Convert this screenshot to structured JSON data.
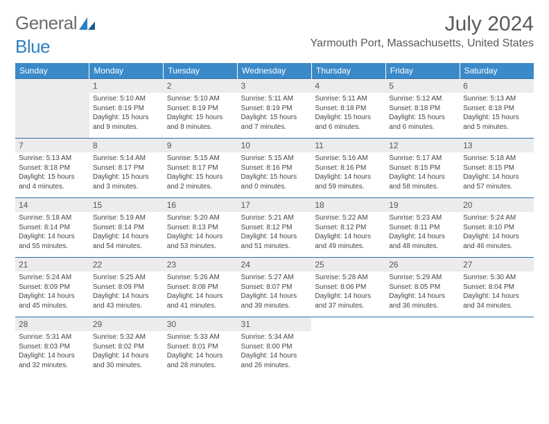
{
  "logo": {
    "text1": "General",
    "text2": "Blue"
  },
  "title": "July 2024",
  "location": "Yarmouth Port, Massachusetts, United States",
  "colors": {
    "header_bg": "#3a8ac9",
    "row_border": "#2e6da4",
    "shade": "#ececec",
    "text": "#444444",
    "title": "#595959"
  },
  "day_headers": [
    "Sunday",
    "Monday",
    "Tuesday",
    "Wednesday",
    "Thursday",
    "Friday",
    "Saturday"
  ],
  "weeks": [
    {
      "shaded_daynum": true,
      "cells": [
        {
          "empty": true,
          "shaded": true
        },
        {
          "day": "1",
          "sunrise": "Sunrise: 5:10 AM",
          "sunset": "Sunset: 8:19 PM",
          "daylight1": "Daylight: 15 hours",
          "daylight2": "and 9 minutes."
        },
        {
          "day": "2",
          "sunrise": "Sunrise: 5:10 AM",
          "sunset": "Sunset: 8:19 PM",
          "daylight1": "Daylight: 15 hours",
          "daylight2": "and 8 minutes."
        },
        {
          "day": "3",
          "sunrise": "Sunrise: 5:11 AM",
          "sunset": "Sunset: 8:19 PM",
          "daylight1": "Daylight: 15 hours",
          "daylight2": "and 7 minutes."
        },
        {
          "day": "4",
          "sunrise": "Sunrise: 5:11 AM",
          "sunset": "Sunset: 8:18 PM",
          "daylight1": "Daylight: 15 hours",
          "daylight2": "and 6 minutes."
        },
        {
          "day": "5",
          "sunrise": "Sunrise: 5:12 AM",
          "sunset": "Sunset: 8:18 PM",
          "daylight1": "Daylight: 15 hours",
          "daylight2": "and 6 minutes."
        },
        {
          "day": "6",
          "sunrise": "Sunrise: 5:13 AM",
          "sunset": "Sunset: 8:18 PM",
          "daylight1": "Daylight: 15 hours",
          "daylight2": "and 5 minutes."
        }
      ]
    },
    {
      "shaded_daynum": true,
      "cells": [
        {
          "day": "7",
          "sunrise": "Sunrise: 5:13 AM",
          "sunset": "Sunset: 8:18 PM",
          "daylight1": "Daylight: 15 hours",
          "daylight2": "and 4 minutes."
        },
        {
          "day": "8",
          "sunrise": "Sunrise: 5:14 AM",
          "sunset": "Sunset: 8:17 PM",
          "daylight1": "Daylight: 15 hours",
          "daylight2": "and 3 minutes."
        },
        {
          "day": "9",
          "sunrise": "Sunrise: 5:15 AM",
          "sunset": "Sunset: 8:17 PM",
          "daylight1": "Daylight: 15 hours",
          "daylight2": "and 2 minutes."
        },
        {
          "day": "10",
          "sunrise": "Sunrise: 5:15 AM",
          "sunset": "Sunset: 8:16 PM",
          "daylight1": "Daylight: 15 hours",
          "daylight2": "and 0 minutes."
        },
        {
          "day": "11",
          "sunrise": "Sunrise: 5:16 AM",
          "sunset": "Sunset: 8:16 PM",
          "daylight1": "Daylight: 14 hours",
          "daylight2": "and 59 minutes."
        },
        {
          "day": "12",
          "sunrise": "Sunrise: 5:17 AM",
          "sunset": "Sunset: 8:15 PM",
          "daylight1": "Daylight: 14 hours",
          "daylight2": "and 58 minutes."
        },
        {
          "day": "13",
          "sunrise": "Sunrise: 5:18 AM",
          "sunset": "Sunset: 8:15 PM",
          "daylight1": "Daylight: 14 hours",
          "daylight2": "and 57 minutes."
        }
      ]
    },
    {
      "shaded_daynum": true,
      "cells": [
        {
          "day": "14",
          "sunrise": "Sunrise: 5:18 AM",
          "sunset": "Sunset: 8:14 PM",
          "daylight1": "Daylight: 14 hours",
          "daylight2": "and 55 minutes."
        },
        {
          "day": "15",
          "sunrise": "Sunrise: 5:19 AM",
          "sunset": "Sunset: 8:14 PM",
          "daylight1": "Daylight: 14 hours",
          "daylight2": "and 54 minutes."
        },
        {
          "day": "16",
          "sunrise": "Sunrise: 5:20 AM",
          "sunset": "Sunset: 8:13 PM",
          "daylight1": "Daylight: 14 hours",
          "daylight2": "and 53 minutes."
        },
        {
          "day": "17",
          "sunrise": "Sunrise: 5:21 AM",
          "sunset": "Sunset: 8:12 PM",
          "daylight1": "Daylight: 14 hours",
          "daylight2": "and 51 minutes."
        },
        {
          "day": "18",
          "sunrise": "Sunrise: 5:22 AM",
          "sunset": "Sunset: 8:12 PM",
          "daylight1": "Daylight: 14 hours",
          "daylight2": "and 49 minutes."
        },
        {
          "day": "19",
          "sunrise": "Sunrise: 5:23 AM",
          "sunset": "Sunset: 8:11 PM",
          "daylight1": "Daylight: 14 hours",
          "daylight2": "and 48 minutes."
        },
        {
          "day": "20",
          "sunrise": "Sunrise: 5:24 AM",
          "sunset": "Sunset: 8:10 PM",
          "daylight1": "Daylight: 14 hours",
          "daylight2": "and 46 minutes."
        }
      ]
    },
    {
      "shaded_daynum": true,
      "cells": [
        {
          "day": "21",
          "sunrise": "Sunrise: 5:24 AM",
          "sunset": "Sunset: 8:09 PM",
          "daylight1": "Daylight: 14 hours",
          "daylight2": "and 45 minutes."
        },
        {
          "day": "22",
          "sunrise": "Sunrise: 5:25 AM",
          "sunset": "Sunset: 8:09 PM",
          "daylight1": "Daylight: 14 hours",
          "daylight2": "and 43 minutes."
        },
        {
          "day": "23",
          "sunrise": "Sunrise: 5:26 AM",
          "sunset": "Sunset: 8:08 PM",
          "daylight1": "Daylight: 14 hours",
          "daylight2": "and 41 minutes."
        },
        {
          "day": "24",
          "sunrise": "Sunrise: 5:27 AM",
          "sunset": "Sunset: 8:07 PM",
          "daylight1": "Daylight: 14 hours",
          "daylight2": "and 39 minutes."
        },
        {
          "day": "25",
          "sunrise": "Sunrise: 5:28 AM",
          "sunset": "Sunset: 8:06 PM",
          "daylight1": "Daylight: 14 hours",
          "daylight2": "and 37 minutes."
        },
        {
          "day": "26",
          "sunrise": "Sunrise: 5:29 AM",
          "sunset": "Sunset: 8:05 PM",
          "daylight1": "Daylight: 14 hours",
          "daylight2": "and 36 minutes."
        },
        {
          "day": "27",
          "sunrise": "Sunrise: 5:30 AM",
          "sunset": "Sunset: 8:04 PM",
          "daylight1": "Daylight: 14 hours",
          "daylight2": "and 34 minutes."
        }
      ]
    },
    {
      "shaded_daynum": true,
      "cells": [
        {
          "day": "28",
          "sunrise": "Sunrise: 5:31 AM",
          "sunset": "Sunset: 8:03 PM",
          "daylight1": "Daylight: 14 hours",
          "daylight2": "and 32 minutes."
        },
        {
          "day": "29",
          "sunrise": "Sunrise: 5:32 AM",
          "sunset": "Sunset: 8:02 PM",
          "daylight1": "Daylight: 14 hours",
          "daylight2": "and 30 minutes."
        },
        {
          "day": "30",
          "sunrise": "Sunrise: 5:33 AM",
          "sunset": "Sunset: 8:01 PM",
          "daylight1": "Daylight: 14 hours",
          "daylight2": "and 28 minutes."
        },
        {
          "day": "31",
          "sunrise": "Sunrise: 5:34 AM",
          "sunset": "Sunset: 8:00 PM",
          "daylight1": "Daylight: 14 hours",
          "daylight2": "and 26 minutes."
        },
        {
          "empty": true
        },
        {
          "empty": true
        },
        {
          "empty": true
        }
      ]
    }
  ]
}
